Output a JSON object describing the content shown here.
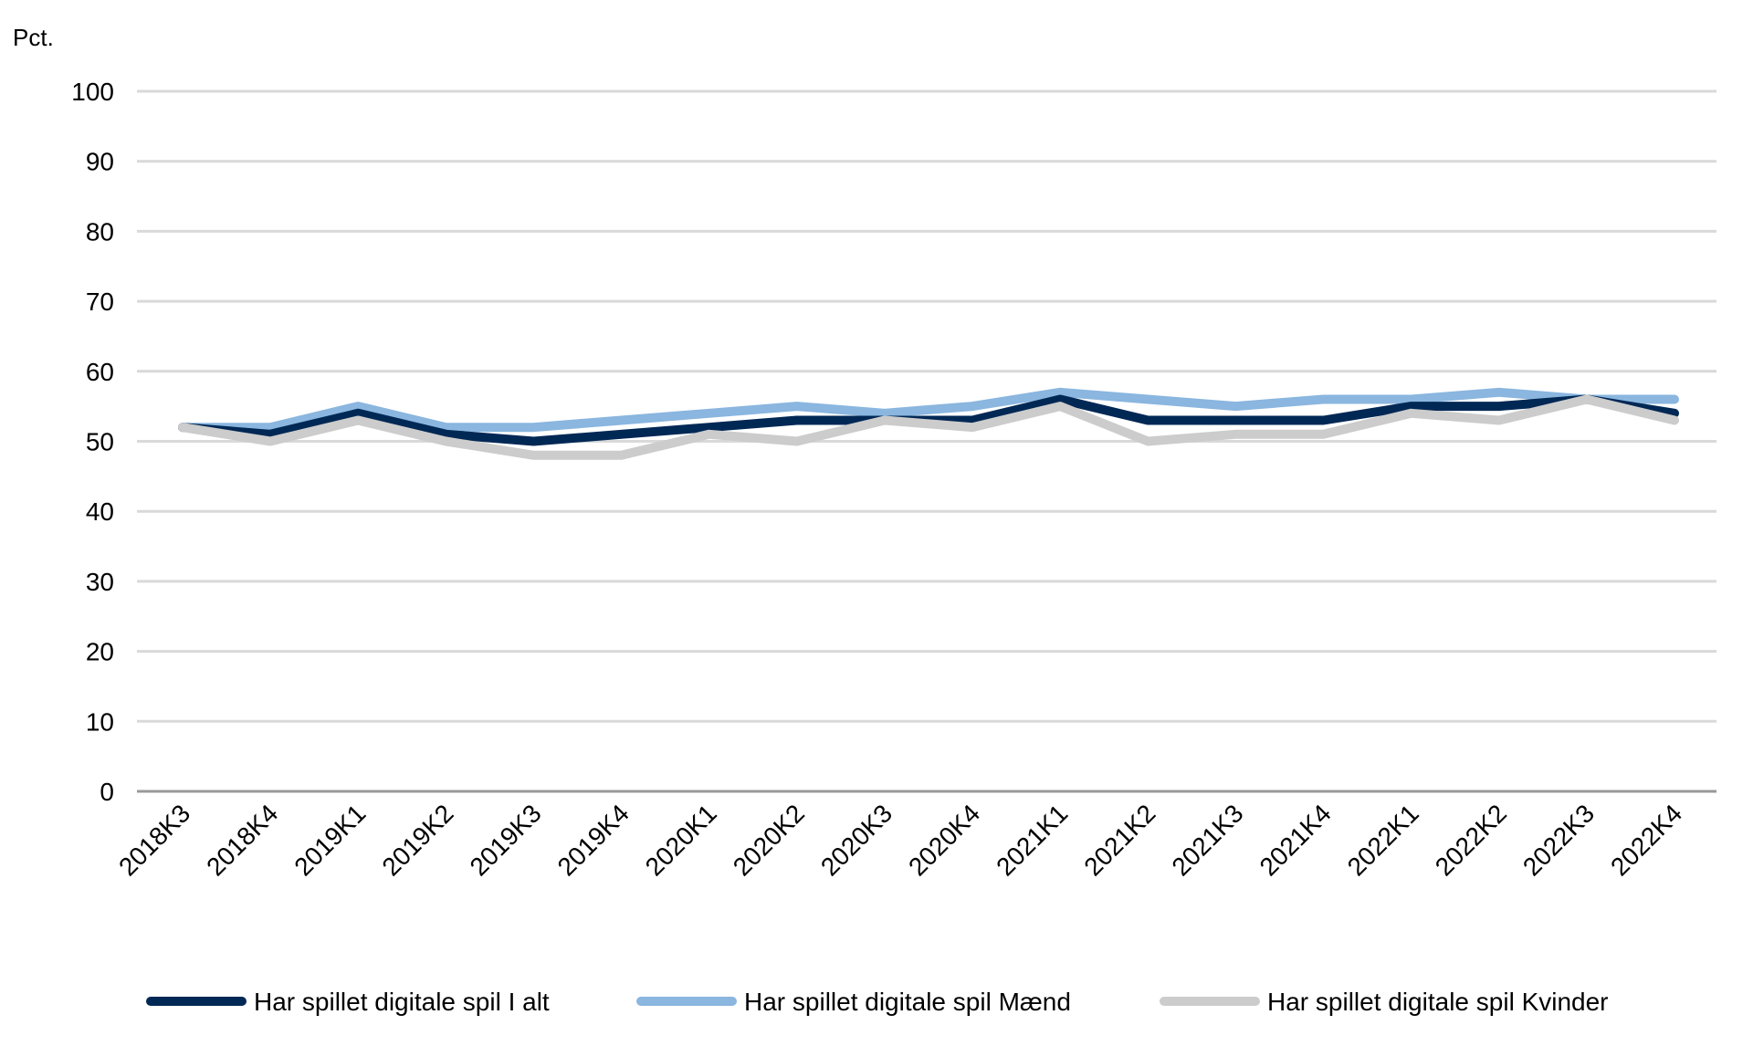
{
  "chart_data": {
    "type": "line",
    "ylabel": "Pct.",
    "ylim": [
      0,
      100
    ],
    "yticks": [
      0,
      10,
      20,
      30,
      40,
      50,
      60,
      70,
      80,
      90,
      100
    ],
    "categories": [
      "2018K3",
      "2018K4",
      "2019K1",
      "2019K2",
      "2019K3",
      "2019K4",
      "2020K1",
      "2020K2",
      "2020K3",
      "2020K4",
      "2021K1",
      "2021K2",
      "2021K3",
      "2021K4",
      "2022K1",
      "2022K2",
      "2022K3",
      "2022K4"
    ],
    "grid": true,
    "legend_position": "bottom",
    "series": [
      {
        "name": "Har spillet digitale spil I alt",
        "color": "#002855",
        "values": [
          52,
          51,
          54,
          51,
          50,
          51,
          52,
          53,
          53,
          53,
          56,
          53,
          53,
          53,
          55,
          55,
          56,
          54
        ]
      },
      {
        "name": "Har spillet digitale spil Mænd",
        "color": "#8ab6df",
        "values": [
          52,
          52,
          55,
          52,
          52,
          53,
          54,
          55,
          54,
          55,
          57,
          56,
          55,
          56,
          56,
          57,
          56,
          56
        ]
      },
      {
        "name": "Har spillet digitale spil Kvinder",
        "color": "#cccccc",
        "values": [
          52,
          50,
          53,
          50,
          48,
          48,
          51,
          50,
          53,
          52,
          55,
          50,
          51,
          51,
          54,
          53,
          56,
          53
        ]
      }
    ]
  }
}
